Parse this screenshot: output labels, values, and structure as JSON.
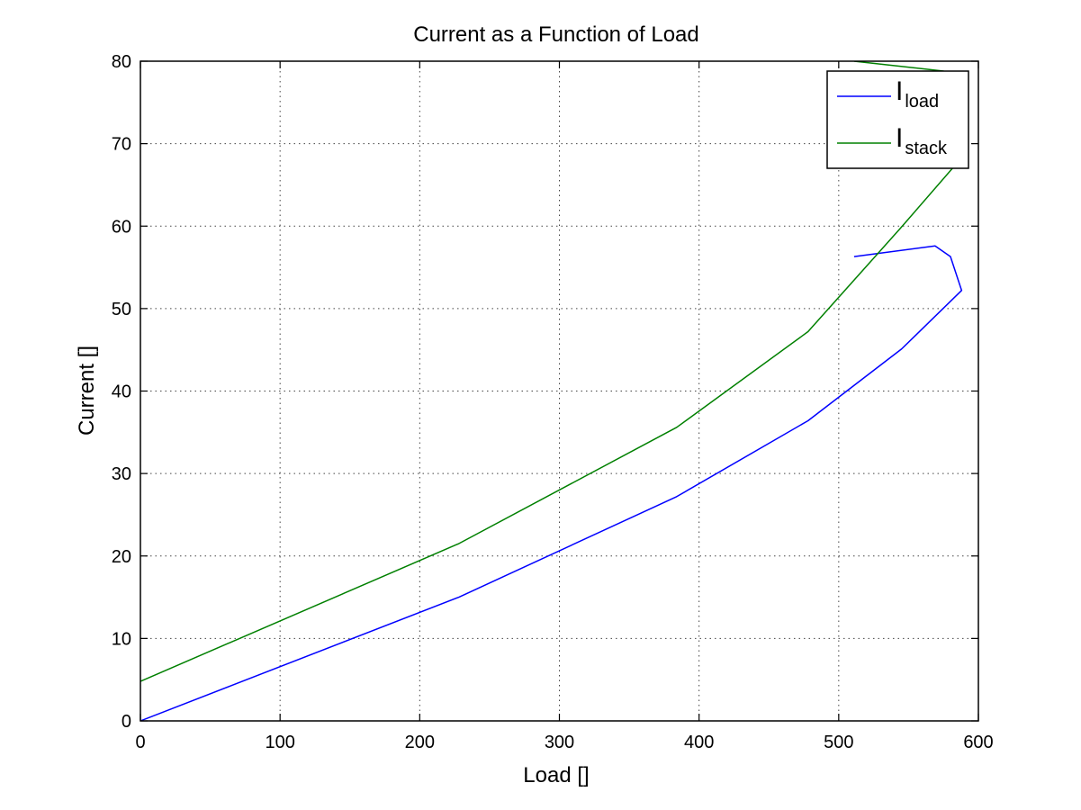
{
  "chart_data": {
    "type": "line",
    "title": "Current as a Function of Load",
    "xlabel": "Load []",
    "ylabel": "Current []",
    "xlim": [
      0,
      600
    ],
    "ylim": [
      0,
      80
    ],
    "xticks": [
      0,
      100,
      200,
      300,
      400,
      500,
      600
    ],
    "yticks": [
      0,
      10,
      20,
      30,
      40,
      50,
      60,
      70,
      80
    ],
    "grid": true,
    "legend_position": "top-right",
    "series": [
      {
        "name": "I",
        "name_sub": "load",
        "color": "#0000ff",
        "x": [
          0,
          228,
          384,
          478,
          545,
          588,
          580,
          569,
          511
        ],
        "y": [
          0,
          15.0,
          27.2,
          36.4,
          45.1,
          52.2,
          56.3,
          57.6,
          56.3
        ]
      },
      {
        "name": "I",
        "name_sub": "stack",
        "color": "#008000",
        "x": [
          0,
          228,
          384,
          478,
          545,
          588,
          575,
          511
        ],
        "y": [
          4.8,
          21.5,
          35.6,
          47.2,
          59.9,
          68.3,
          78.8,
          80.0
        ]
      }
    ]
  }
}
